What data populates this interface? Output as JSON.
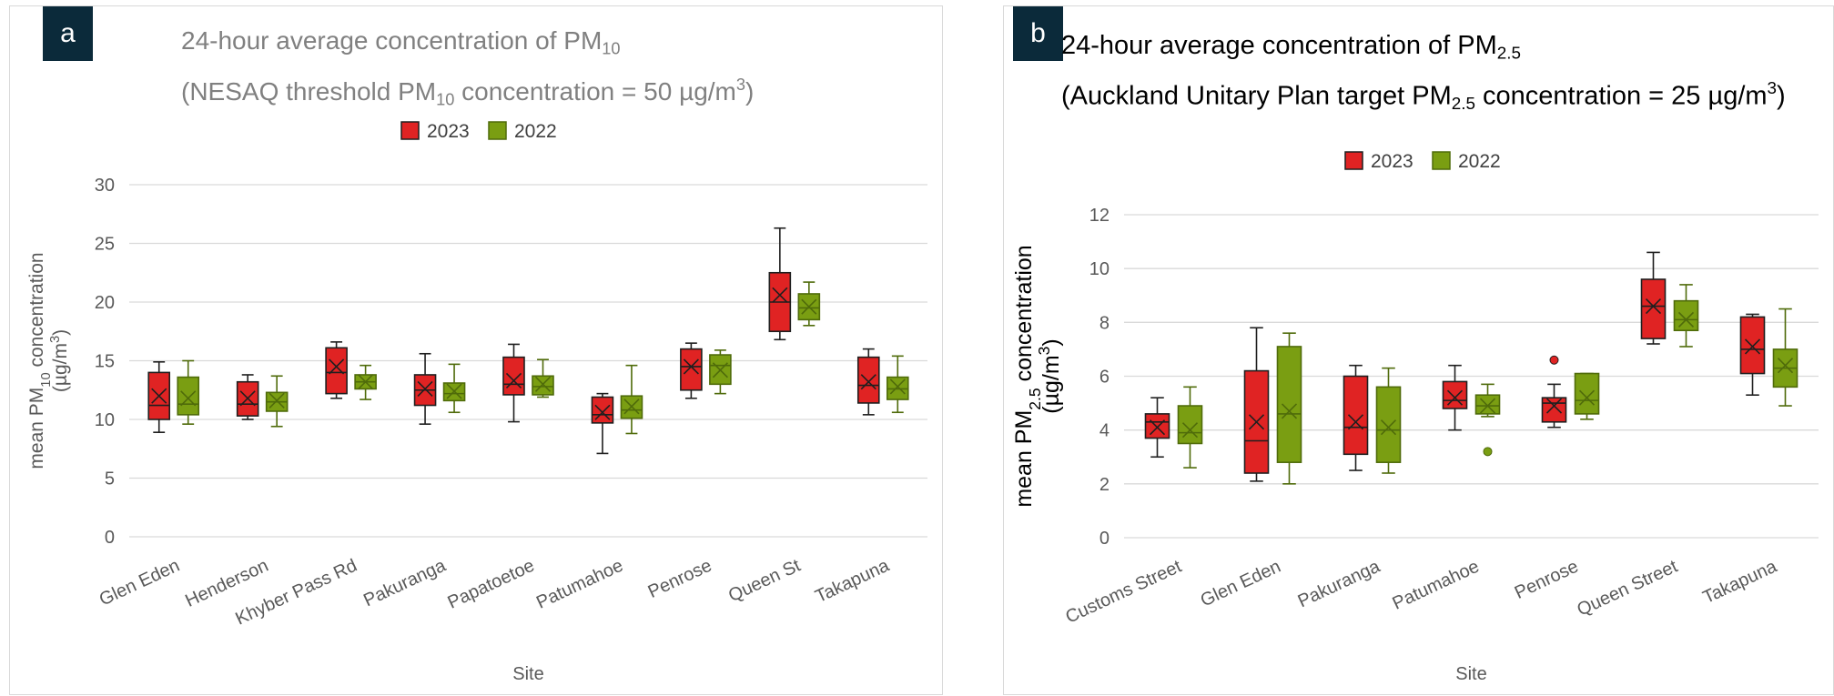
{
  "colors": {
    "c2023": "#e02323",
    "c2022": "#7a9e12",
    "stroke2023": "#1f1f1f",
    "stroke2022": "#4f6b0a",
    "grid": "#d9d9d9"
  },
  "chart_data": [
    {
      "type": "box",
      "badge": "a",
      "title_line1_text": "24-hour average concentration of PM",
      "title_line1_sub": "10",
      "title_line2_pre": "(NESAQ threshold PM",
      "title_line2_sub": "10",
      "title_line2_mid": " concentration = 50 µg/m",
      "title_line2_sup": "3",
      "title_line2_end": ")",
      "legend": [
        "2023",
        "2022"
      ],
      "xlabel": "Site",
      "ylabel_line1": "mean PM",
      "ylabel_sub": "10",
      "ylabel_line1_end": " concentration",
      "ylabel_line2": "(µg/m",
      "ylabel_line2_sup": "3",
      "ylabel_line2_end": ")",
      "ylim": [
        0,
        30
      ],
      "yticks": [
        0,
        5,
        10,
        15,
        20,
        25,
        30
      ],
      "categories": [
        "Glen Eden",
        "Henderson",
        "Khyber Pass Rd",
        "Pakuranga",
        "Papatoetoe",
        "Patumahoe",
        "Penrose",
        "Queen St",
        "Takapuna"
      ],
      "series": [
        {
          "name": "2023",
          "boxes": [
            {
              "min": 8.9,
              "q1": 10.0,
              "median": 11.2,
              "q3": 14.0,
              "max": 14.9,
              "mean": 12.0
            },
            {
              "min": 10.0,
              "q1": 10.3,
              "median": 11.3,
              "q3": 13.2,
              "max": 13.8,
              "mean": 11.8
            },
            {
              "min": 11.8,
              "q1": 12.2,
              "median": 14.0,
              "q3": 16.1,
              "max": 16.6,
              "mean": 14.5
            },
            {
              "min": 9.6,
              "q1": 11.2,
              "median": 12.5,
              "q3": 13.8,
              "max": 15.6,
              "mean": 12.6
            },
            {
              "min": 9.8,
              "q1": 12.1,
              "median": 13.0,
              "q3": 15.3,
              "max": 16.4,
              "mean": 13.3
            },
            {
              "min": 7.1,
              "q1": 9.7,
              "median": 10.4,
              "q3": 11.9,
              "max": 12.2,
              "mean": 10.6
            },
            {
              "min": 11.8,
              "q1": 12.5,
              "median": 14.5,
              "q3": 16.0,
              "max": 16.5,
              "mean": 14.5
            },
            {
              "min": 16.8,
              "q1": 17.5,
              "median": 20.0,
              "q3": 22.5,
              "max": 26.3,
              "mean": 20.6
            },
            {
              "min": 10.4,
              "q1": 11.4,
              "median": 12.9,
              "q3": 15.3,
              "max": 16.0,
              "mean": 13.2
            }
          ]
        },
        {
          "name": "2022",
          "boxes": [
            {
              "min": 9.6,
              "q1": 10.4,
              "median": 11.3,
              "q3": 13.6,
              "max": 15.0,
              "mean": 11.8
            },
            {
              "min": 9.4,
              "q1": 10.7,
              "median": 11.5,
              "q3": 12.3,
              "max": 13.7,
              "mean": 11.6
            },
            {
              "min": 11.7,
              "q1": 12.6,
              "median": 13.2,
              "q3": 13.8,
              "max": 14.6,
              "mean": 13.2
            },
            {
              "min": 10.6,
              "q1": 11.6,
              "median": 12.2,
              "q3": 13.1,
              "max": 14.7,
              "mean": 12.4
            },
            {
              "min": 11.9,
              "q1": 12.1,
              "median": 12.8,
              "q3": 13.7,
              "max": 15.1,
              "mean": 13.0
            },
            {
              "min": 8.8,
              "q1": 10.1,
              "median": 10.8,
              "q3": 12.0,
              "max": 14.6,
              "mean": 11.1
            },
            {
              "min": 12.2,
              "q1": 13.0,
              "median": 14.6,
              "q3": 15.5,
              "max": 15.9,
              "mean": 14.2
            },
            {
              "min": 18.0,
              "q1": 18.5,
              "median": 19.5,
              "q3": 20.7,
              "max": 21.7,
              "mean": 19.6
            },
            {
              "min": 10.6,
              "q1": 11.7,
              "median": 12.6,
              "q3": 13.6,
              "max": 15.4,
              "mean": 12.8
            }
          ]
        }
      ]
    },
    {
      "type": "box",
      "badge": "b",
      "title_line1_text": "24-hour average concentration of PM",
      "title_line1_sub": "2.5",
      "title_line2_pre": "(Auckland Unitary Plan target  PM",
      "title_line2_sub": "2.5",
      "title_line2_mid": " concentration = 25 µg/m",
      "title_line2_sup": "3",
      "title_line2_end": ")",
      "legend": [
        "2023",
        "2022"
      ],
      "xlabel": "Site",
      "ylabel_line1": "mean PM",
      "ylabel_sub": "2.5",
      "ylabel_line1_end": " concentration",
      "ylabel_line2": "(µg/m",
      "ylabel_line2_sup": "3",
      "ylabel_line2_end": ")",
      "ylim": [
        0,
        12
      ],
      "yticks": [
        0,
        2,
        4,
        6,
        8,
        10,
        12
      ],
      "categories": [
        "Customs Street",
        "Glen Eden",
        "Pakuranga",
        "Patumahoe",
        "Penrose",
        "Queen Street",
        "Takapuna"
      ],
      "series": [
        {
          "name": "2023",
          "boxes": [
            {
              "min": 3.0,
              "q1": 3.7,
              "median": 4.3,
              "q3": 4.6,
              "max": 5.2,
              "mean": 4.1
            },
            {
              "min": 2.1,
              "q1": 2.4,
              "median": 3.6,
              "q3": 6.2,
              "max": 7.8,
              "mean": 4.3
            },
            {
              "min": 2.5,
              "q1": 3.1,
              "median": 4.1,
              "q3": 6.0,
              "max": 6.4,
              "mean": 4.3
            },
            {
              "min": 4.0,
              "q1": 4.8,
              "median": 5.1,
              "q3": 5.8,
              "max": 6.4,
              "mean": 5.2
            },
            {
              "min": 4.1,
              "q1": 4.3,
              "median": 5.0,
              "q3": 5.2,
              "max": 5.7,
              "mean": 4.9,
              "outliers": [
                6.6
              ]
            },
            {
              "min": 7.2,
              "q1": 7.4,
              "median": 8.6,
              "q3": 9.6,
              "max": 10.6,
              "mean": 8.6
            },
            {
              "min": 5.3,
              "q1": 6.1,
              "median": 7.0,
              "q3": 8.2,
              "max": 8.3,
              "mean": 7.1
            }
          ]
        },
        {
          "name": "2022",
          "boxes": [
            {
              "min": 2.6,
              "q1": 3.5,
              "median": 3.9,
              "q3": 4.9,
              "max": 5.6,
              "mean": 4.0
            },
            {
              "min": 2.0,
              "q1": 2.8,
              "median": 4.6,
              "q3": 7.1,
              "max": 7.6,
              "mean": 4.7
            },
            {
              "min": 2.4,
              "q1": 2.8,
              "median": 4.0,
              "q3": 5.6,
              "max": 6.3,
              "mean": 4.1
            },
            {
              "min": 4.5,
              "q1": 4.6,
              "median": 4.9,
              "q3": 5.3,
              "max": 5.7,
              "mean": 4.9,
              "outliers": [
                3.2
              ]
            },
            {
              "min": 4.4,
              "q1": 4.6,
              "median": 5.1,
              "q3": 6.1,
              "max": 6.1,
              "mean": 5.2
            },
            {
              "min": 7.1,
              "q1": 7.7,
              "median": 8.1,
              "q3": 8.8,
              "max": 9.4,
              "mean": 8.1
            },
            {
              "min": 4.9,
              "q1": 5.6,
              "median": 6.3,
              "q3": 7.0,
              "max": 8.5,
              "mean": 6.4
            }
          ]
        }
      ]
    }
  ]
}
